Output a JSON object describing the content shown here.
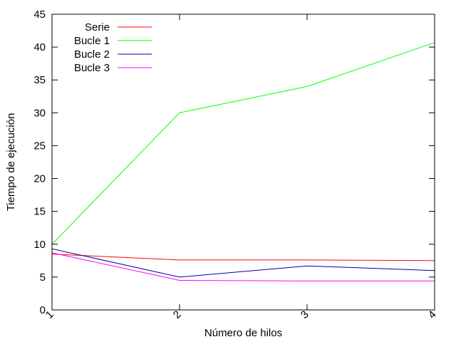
{
  "chart_data": {
    "type": "line",
    "title": "",
    "xlabel": "Número de hilos",
    "ylabel": "Tiempo de ejecución",
    "x": [
      1,
      2,
      3,
      4
    ],
    "x_tick_labels": [
      "1",
      "2",
      "3",
      "4"
    ],
    "xlim": [
      1,
      4
    ],
    "ylim": [
      0,
      45
    ],
    "y_ticks": [
      0,
      5,
      10,
      15,
      20,
      25,
      30,
      35,
      40,
      45
    ],
    "grid": false,
    "legend_position": "top-left",
    "series": [
      {
        "name": "Serie",
        "color": "#ff0000",
        "values": [
          8.5,
          7.6,
          7.6,
          7.5
        ]
      },
      {
        "name": "Bucle 1",
        "color": "#00ff00",
        "values": [
          10.0,
          30.0,
          34.0,
          40.7
        ]
      },
      {
        "name": "Bucle 2",
        "color": "#0000a0",
        "values": [
          9.3,
          5.0,
          6.7,
          6.0
        ]
      },
      {
        "name": "Bucle 3",
        "color": "#ff00ff",
        "values": [
          8.7,
          4.5,
          4.4,
          4.4
        ]
      }
    ]
  }
}
